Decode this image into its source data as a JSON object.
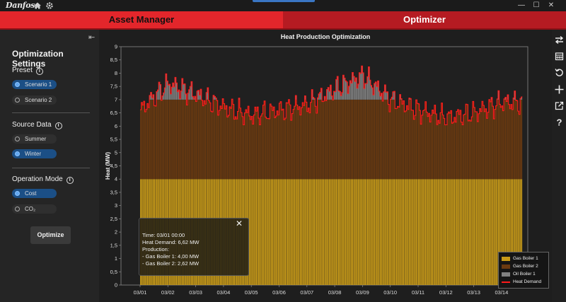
{
  "titlebar": {
    "logo_text": "Danfoss",
    "icons": [
      "home-icon",
      "gear-icon"
    ],
    "window_buttons": [
      "minimize-icon",
      "maximize-icon",
      "close-icon"
    ],
    "minimize": "—",
    "maximize": "☐",
    "close": "✕"
  },
  "tabs": [
    {
      "label": "Asset Manager",
      "active": false
    },
    {
      "label": "Optimizer",
      "active": true
    }
  ],
  "sidebar": {
    "collapse_glyph": "⇤",
    "title": "Optimization Settings",
    "preset": {
      "label": "Preset",
      "options": [
        {
          "label": "Scenario 1",
          "selected": true
        },
        {
          "label": "Scenario 2",
          "selected": false
        }
      ]
    },
    "source": {
      "label": "Source Data",
      "options": [
        {
          "label": "Summer",
          "selected": false
        },
        {
          "label": "Winter",
          "selected": true
        }
      ]
    },
    "mode": {
      "label": "Operation Mode",
      "options": [
        {
          "label": "Cost",
          "selected": true
        },
        {
          "label": "CO₂",
          "selected": false
        }
      ]
    },
    "optimize_label": "Optimize"
  },
  "toolbar": {
    "icons": [
      "swap-arrows-icon",
      "calendar-icon",
      "reset-icon",
      "move-icon",
      "export-icon",
      "help-icon"
    ]
  },
  "colors": {
    "accent_red": "#e3262b",
    "tab_active": "#b51b22",
    "gas_boiler_1": "#c89a18",
    "gas_boiler_2": "#6b3a10",
    "oil_boiler_1": "#808080",
    "heat_demand": "#ff1a1a",
    "selected_blue": "#1b4f86"
  },
  "tooltip": {
    "close": "✕",
    "time": "Time: 03/01 00:00",
    "demand": "Heat Demand: 6,62 MW",
    "production": "Production:",
    "line1": "- Gas Boiler 1: 4,00 MW",
    "line2": "- Gas Boiler 2: 2,62 MW"
  },
  "chart_data": {
    "type": "area",
    "title": "Heat Production Optimization",
    "ylabel": "Heat (MW)",
    "xlabel": "",
    "ylim": [
      0,
      9
    ],
    "y_ticks": [
      "0",
      "0,5",
      "1",
      "1,5",
      "2",
      "2,5",
      "3",
      "3,5",
      "4",
      "4,5",
      "5",
      "5,5",
      "6",
      "6,5",
      "7",
      "7,5",
      "8",
      "8,5",
      "9"
    ],
    "x_ticks": [
      "03/01",
      "03/02",
      "03/03",
      "03/04",
      "03/05",
      "03/06",
      "03/07",
      "03/08",
      "03/09",
      "03/10",
      "03/11",
      "03/12",
      "03/13",
      "03/14"
    ],
    "legend_position": "bottom-right",
    "grid": false,
    "series": [
      {
        "name": "Gas Boiler 1",
        "kind": "stacked-bar",
        "constant_value": 4.0
      },
      {
        "name": "Gas Boiler 2",
        "kind": "stacked-bar",
        "cap_value": 3.0
      },
      {
        "name": "Oil Boiler 1",
        "kind": "stacked-bar"
      },
      {
        "name": "Heat Demand",
        "kind": "line"
      }
    ],
    "heat_demand_daily": [
      {
        "x": "03/01",
        "y": 6.62
      },
      {
        "x": "03/02",
        "y": 7.6
      },
      {
        "x": "03/03",
        "y": 7.2
      },
      {
        "x": "03/04",
        "y": 6.7
      },
      {
        "x": "03/05",
        "y": 6.4
      },
      {
        "x": "03/06",
        "y": 6.6
      },
      {
        "x": "03/07",
        "y": 6.8
      },
      {
        "x": "03/08",
        "y": 7.4
      },
      {
        "x": "03/09",
        "y": 7.9
      },
      {
        "x": "03/10",
        "y": 7.0
      },
      {
        "x": "03/11",
        "y": 6.6
      },
      {
        "x": "03/12",
        "y": 6.3
      },
      {
        "x": "03/13",
        "y": 6.5
      },
      {
        "x": "03/14",
        "y": 6.9
      }
    ]
  }
}
